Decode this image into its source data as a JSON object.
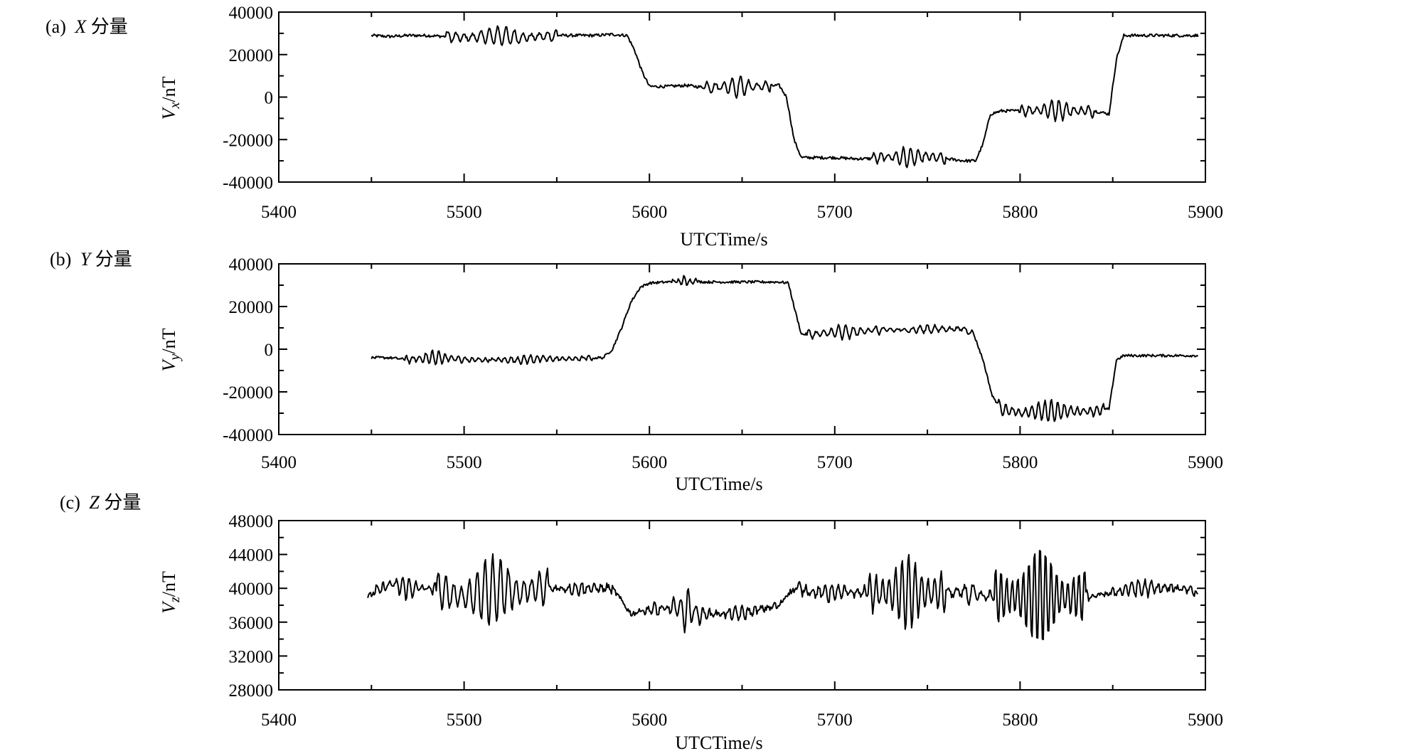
{
  "chart_data": [
    {
      "type": "line",
      "panel_label": "(a)",
      "component": "X",
      "component_suffix": "分量",
      "xlabel": "UTCTime/s",
      "ylabel_var": "V",
      "ylabel_sub": "x",
      "ylabel_unit": "/nT",
      "xlim": [
        5400,
        5900
      ],
      "ylim": [
        -40000,
        40000
      ],
      "xticks": [
        5400,
        5500,
        5600,
        5700,
        5800,
        5900
      ],
      "yticks": [
        -40000,
        -20000,
        0,
        20000,
        40000
      ],
      "grid": false,
      "series": [
        {
          "x": [
            5450,
            5460,
            5470,
            5480,
            5490,
            5500,
            5510,
            5520,
            5530,
            5540,
            5550,
            5560,
            5570,
            5580,
            5588,
            5592,
            5596,
            5600,
            5610,
            5620,
            5630,
            5640,
            5650,
            5660,
            5670,
            5674,
            5678,
            5682,
            5690,
            5700,
            5710,
            5720,
            5730,
            5740,
            5750,
            5760,
            5770,
            5776,
            5780,
            5784,
            5790,
            5800,
            5810,
            5820,
            5830,
            5840,
            5848,
            5852,
            5856,
            5860,
            5870,
            5880,
            5890,
            5896
          ],
          "y": [
            29000,
            28500,
            29000,
            29000,
            28500,
            28000,
            28500,
            29000,
            28000,
            28500,
            29000,
            29000,
            29000,
            29500,
            29000,
            22000,
            12000,
            5000,
            5000,
            5500,
            4500,
            5000,
            5000,
            5000,
            5500,
            0,
            -20000,
            -28500,
            -28500,
            -28500,
            -29000,
            -29000,
            -28000,
            -28500,
            -28000,
            -29000,
            -30000,
            -30000,
            -22000,
            -8000,
            -6500,
            -6500,
            -6000,
            -6000,
            -6500,
            -6500,
            -8000,
            18000,
            29000,
            29000,
            29000,
            29000,
            29000,
            29000
          ]
        }
      ],
      "oscillations": [
        {
          "from": 5490,
          "to": 5550,
          "amplitude": 4500,
          "period": 4.5
        },
        {
          "from": 5630,
          "to": 5665,
          "amplitude": 5000,
          "period": 4.5
        },
        {
          "from": 5720,
          "to": 5760,
          "amplitude": 5000,
          "period": 4.0
        },
        {
          "from": 5800,
          "to": 5840,
          "amplitude": 5000,
          "period": 4.0
        }
      ],
      "noise": 700
    },
    {
      "type": "line",
      "panel_label": "(b)",
      "component": "Y",
      "component_suffix": "分量",
      "xlabel": "UTCTime/s",
      "ylabel_var": "V",
      "ylabel_sub": "y",
      "ylabel_unit": "/nT",
      "xlim": [
        5400,
        5900
      ],
      "ylim": [
        -40000,
        40000
      ],
      "xticks": [
        5400,
        5500,
        5600,
        5700,
        5800,
        5900
      ],
      "yticks": [
        -40000,
        -20000,
        0,
        20000,
        40000
      ],
      "grid": false,
      "series": [
        {
          "x": [
            5450,
            5460,
            5470,
            5480,
            5490,
            5500,
            5510,
            5520,
            5530,
            5540,
            5550,
            5560,
            5570,
            5575,
            5580,
            5585,
            5590,
            5595,
            5600,
            5610,
            5620,
            5630,
            5640,
            5650,
            5660,
            5670,
            5675,
            5678,
            5682,
            5690,
            5700,
            5710,
            5720,
            5730,
            5740,
            5750,
            5760,
            5770,
            5775,
            5780,
            5785,
            5790,
            5800,
            5810,
            5820,
            5830,
            5840,
            5848,
            5852,
            5856,
            5860,
            5870,
            5880,
            5890,
            5896
          ],
          "y": [
            -4000,
            -4000,
            -5000,
            -4000,
            -4000,
            -5000,
            -5000,
            -5000,
            -5000,
            -4500,
            -4500,
            -4500,
            -4000,
            -4000,
            0,
            10000,
            22000,
            29000,
            31000,
            31500,
            32000,
            31500,
            31500,
            31500,
            31500,
            31500,
            31000,
            20000,
            7000,
            7000,
            8000,
            8000,
            9000,
            9000,
            9000,
            9500,
            9500,
            9500,
            7000,
            -5000,
            -22000,
            -28000,
            -30000,
            -29000,
            -29000,
            -29000,
            -29000,
            -28000,
            -5000,
            -3000,
            -3000,
            -3000,
            -3000,
            -3000,
            -3000
          ]
        }
      ],
      "oscillations": [
        {
          "from": 5468,
          "to": 5500,
          "amplitude": 3500,
          "period": 3.5
        },
        {
          "from": 5500,
          "to": 5570,
          "amplitude": 1800,
          "period": 3.5
        },
        {
          "from": 5612,
          "to": 5625,
          "amplitude": 2500,
          "period": 3.0
        },
        {
          "from": 5685,
          "to": 5725,
          "amplitude": 3500,
          "period": 4.0
        },
        {
          "from": 5725,
          "to": 5775,
          "amplitude": 2000,
          "period": 4.0
        },
        {
          "from": 5788,
          "to": 5845,
          "amplitude": 5000,
          "period": 3.5
        }
      ],
      "noise": 600
    },
    {
      "type": "line",
      "panel_label": "(c)",
      "component": "Z",
      "component_suffix": "分量",
      "xlabel": "UTCTime/s",
      "ylabel_var": "V",
      "ylabel_sub": "z",
      "ylabel_unit": "/nT",
      "xlim": [
        5400,
        5900
      ],
      "ylim": [
        28000,
        48000
      ],
      "xticks": [
        5400,
        5500,
        5600,
        5700,
        5800,
        5900
      ],
      "yticks": [
        28000,
        32000,
        36000,
        40000,
        44000,
        48000
      ],
      "grid": false,
      "series": [
        {
          "x": [
            5448,
            5460,
            5470,
            5480,
            5490,
            5500,
            5510,
            5520,
            5530,
            5540,
            5550,
            5560,
            5570,
            5580,
            5585,
            5590,
            5600,
            5610,
            5620,
            5630,
            5640,
            5650,
            5660,
            5670,
            5675,
            5680,
            5690,
            5700,
            5710,
            5720,
            5730,
            5740,
            5750,
            5760,
            5770,
            5780,
            5790,
            5800,
            5810,
            5820,
            5830,
            5840,
            5850,
            5860,
            5870,
            5880,
            5890,
            5896
          ],
          "y": [
            39000,
            40500,
            40000,
            40000,
            39500,
            39000,
            39500,
            40000,
            39500,
            40000,
            40000,
            40000,
            40000,
            40000,
            38500,
            37000,
            37500,
            37500,
            37500,
            37000,
            37000,
            37000,
            37500,
            38000,
            39500,
            40000,
            39500,
            39500,
            39500,
            39500,
            39500,
            39500,
            39500,
            39500,
            39500,
            39000,
            39000,
            39000,
            39000,
            39000,
            39000,
            39000,
            39500,
            40000,
            40000,
            40000,
            40000,
            39500
          ]
        }
      ],
      "oscillations": [
        {
          "from": 5452,
          "to": 5485,
          "amplitude": 1200,
          "period": 3.5
        },
        {
          "from": 5485,
          "to": 5545,
          "amplitude": 4000,
          "period": 4.2
        },
        {
          "from": 5545,
          "to": 5580,
          "amplitude": 800,
          "period": 3.5
        },
        {
          "from": 5595,
          "to": 5612,
          "amplitude": 800,
          "period": 3.5
        },
        {
          "from": 5612,
          "to": 5628,
          "amplitude": 3000,
          "period": 4.0
        },
        {
          "from": 5628,
          "to": 5670,
          "amplitude": 700,
          "period": 3.5
        },
        {
          "from": 5680,
          "to": 5718,
          "amplitude": 1200,
          "period": 3.5
        },
        {
          "from": 5718,
          "to": 5760,
          "amplitude": 4500,
          "period": 3.5
        },
        {
          "from": 5760,
          "to": 5786,
          "amplitude": 1200,
          "period": 4.5
        },
        {
          "from": 5786,
          "to": 5835,
          "amplitude": 6000,
          "period": 3.0
        },
        {
          "from": 5835,
          "to": 5895,
          "amplitude": 900,
          "period": 3.5
        }
      ],
      "noise": 350
    }
  ]
}
